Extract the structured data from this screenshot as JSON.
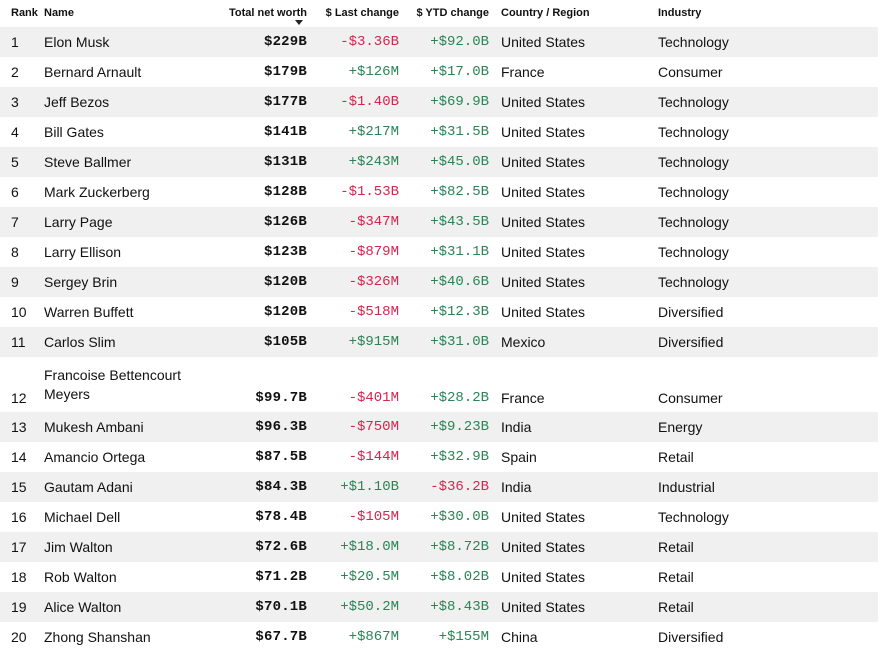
{
  "headers": {
    "rank": "Rank",
    "name": "Name",
    "net_worth": "Total net worth",
    "last_change": "$ Last change",
    "ytd_change": "$ YTD change",
    "country": "Country / Region",
    "industry": "Industry"
  },
  "colors": {
    "negative": "#d4254f",
    "positive": "#2a8456",
    "stripe": "#f0f0f0"
  },
  "rows": [
    {
      "rank": "1",
      "name": "Elon Musk",
      "net_worth": "$229B",
      "last_change": "-$3.36B",
      "ytd_change": "+$92.0B",
      "country": "United States",
      "industry": "Technology"
    },
    {
      "rank": "2",
      "name": "Bernard Arnault",
      "net_worth": "$179B",
      "last_change": "+$126M",
      "ytd_change": "+$17.0B",
      "country": "France",
      "industry": "Consumer"
    },
    {
      "rank": "3",
      "name": "Jeff Bezos",
      "net_worth": "$177B",
      "last_change": "-$1.40B",
      "ytd_change": "+$69.9B",
      "country": "United States",
      "industry": "Technology"
    },
    {
      "rank": "4",
      "name": "Bill Gates",
      "net_worth": "$141B",
      "last_change": "+$217M",
      "ytd_change": "+$31.5B",
      "country": "United States",
      "industry": "Technology"
    },
    {
      "rank": "5",
      "name": "Steve Ballmer",
      "net_worth": "$131B",
      "last_change": "+$243M",
      "ytd_change": "+$45.0B",
      "country": "United States",
      "industry": "Technology"
    },
    {
      "rank": "6",
      "name": "Mark Zuckerberg",
      "net_worth": "$128B",
      "last_change": "-$1.53B",
      "ytd_change": "+$82.5B",
      "country": "United States",
      "industry": "Technology"
    },
    {
      "rank": "7",
      "name": "Larry Page",
      "net_worth": "$126B",
      "last_change": "-$347M",
      "ytd_change": "+$43.5B",
      "country": "United States",
      "industry": "Technology"
    },
    {
      "rank": "8",
      "name": "Larry Ellison",
      "net_worth": "$123B",
      "last_change": "-$879M",
      "ytd_change": "+$31.1B",
      "country": "United States",
      "industry": "Technology"
    },
    {
      "rank": "9",
      "name": "Sergey Brin",
      "net_worth": "$120B",
      "last_change": "-$326M",
      "ytd_change": "+$40.6B",
      "country": "United States",
      "industry": "Technology"
    },
    {
      "rank": "10",
      "name": "Warren Buffett",
      "net_worth": "$120B",
      "last_change": "-$518M",
      "ytd_change": "+$12.3B",
      "country": "United States",
      "industry": "Diversified"
    },
    {
      "rank": "11",
      "name": "Carlos Slim",
      "net_worth": "$105B",
      "last_change": "+$915M",
      "ytd_change": "+$31.0B",
      "country": "Mexico",
      "industry": "Diversified"
    },
    {
      "rank": "12",
      "name": "Francoise Bettencourt Meyers",
      "net_worth": "$99.7B",
      "last_change": "-$401M",
      "ytd_change": "+$28.2B",
      "country": "France",
      "industry": "Consumer"
    },
    {
      "rank": "13",
      "name": "Mukesh Ambani",
      "net_worth": "$96.3B",
      "last_change": "-$750M",
      "ytd_change": "+$9.23B",
      "country": "India",
      "industry": "Energy"
    },
    {
      "rank": "14",
      "name": "Amancio Ortega",
      "net_worth": "$87.5B",
      "last_change": "-$144M",
      "ytd_change": "+$32.9B",
      "country": "Spain",
      "industry": "Retail"
    },
    {
      "rank": "15",
      "name": "Gautam Adani",
      "net_worth": "$84.3B",
      "last_change": "+$1.10B",
      "ytd_change": "-$36.2B",
      "country": "India",
      "industry": "Industrial"
    },
    {
      "rank": "16",
      "name": "Michael Dell",
      "net_worth": "$78.4B",
      "last_change": "-$105M",
      "ytd_change": "+$30.0B",
      "country": "United States",
      "industry": "Technology"
    },
    {
      "rank": "17",
      "name": "Jim Walton",
      "net_worth": "$72.6B",
      "last_change": "+$18.0M",
      "ytd_change": "+$8.72B",
      "country": "United States",
      "industry": "Retail"
    },
    {
      "rank": "18",
      "name": "Rob Walton",
      "net_worth": "$71.2B",
      "last_change": "+$20.5M",
      "ytd_change": "+$8.02B",
      "country": "United States",
      "industry": "Retail"
    },
    {
      "rank": "19",
      "name": "Alice Walton",
      "net_worth": "$70.1B",
      "last_change": "+$50.2M",
      "ytd_change": "+$8.43B",
      "country": "United States",
      "industry": "Retail"
    },
    {
      "rank": "20",
      "name": "Zhong Shanshan",
      "net_worth": "$67.7B",
      "last_change": "+$867M",
      "ytd_change": "+$155M",
      "country": "China",
      "industry": "Diversified"
    }
  ]
}
